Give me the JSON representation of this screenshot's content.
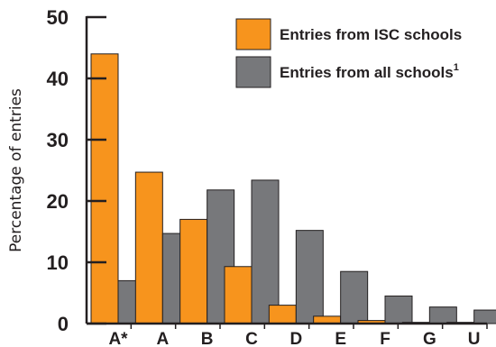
{
  "chart_data": {
    "type": "bar",
    "ylabel": "Percentage of entries",
    "xlabel": "",
    "ylim": [
      0,
      50
    ],
    "yticks": [
      "0",
      "10",
      "20",
      "30",
      "40",
      "50"
    ],
    "categories": [
      "A*",
      "A",
      "B",
      "C",
      "D",
      "E",
      "F",
      "G",
      "U"
    ],
    "series": [
      {
        "name": "Entries from ISC schools",
        "color": "#f7941d",
        "values": [
          44.0,
          24.7,
          17.0,
          9.3,
          3.0,
          1.2,
          0.5,
          0.2,
          0.2
        ]
      },
      {
        "name": "Entries from all schools",
        "superscript": "1",
        "color": "#77787b",
        "values": [
          7.0,
          14.7,
          21.8,
          23.4,
          15.2,
          8.5,
          4.5,
          2.7,
          2.2
        ]
      }
    ],
    "legend_position": "top-right",
    "grid": false
  }
}
